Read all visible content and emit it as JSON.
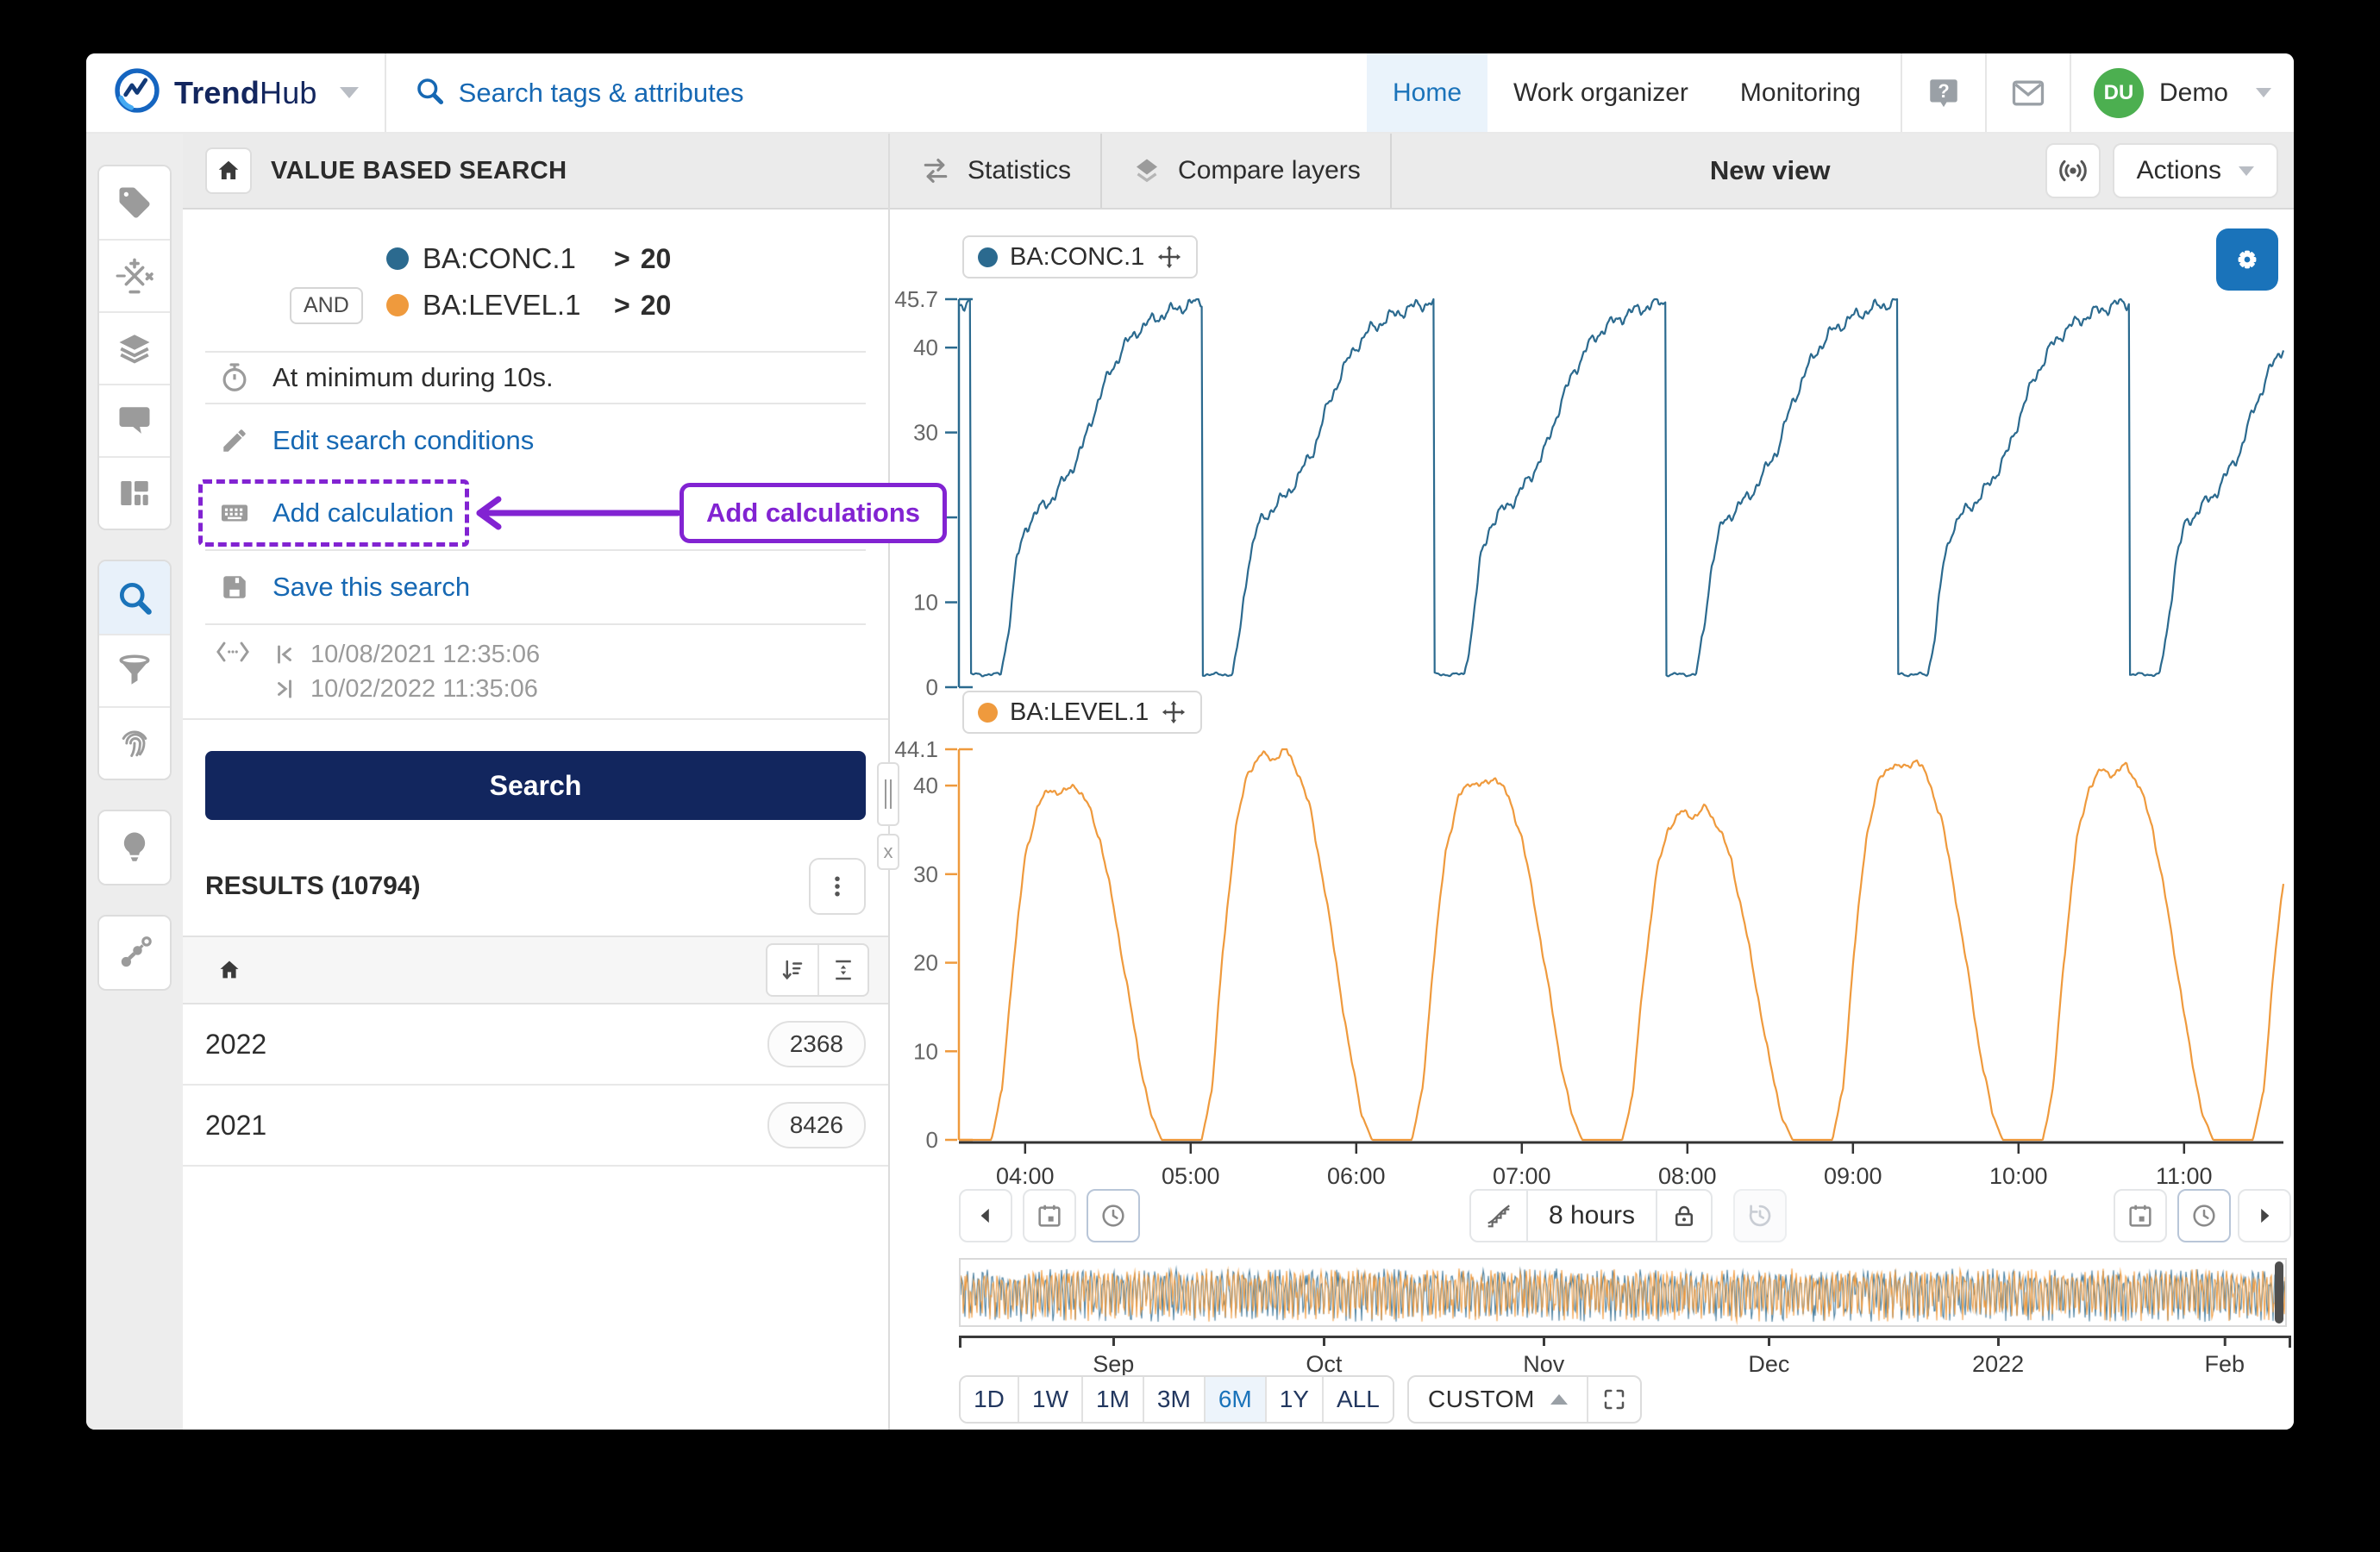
{
  "navbar": {
    "brand": {
      "bold": "Trend",
      "light": "Hub"
    },
    "search_placeholder": "Search tags & attributes",
    "items": [
      {
        "label": "Home",
        "active": true
      },
      {
        "label": "Work organizer",
        "active": false
      },
      {
        "label": "Monitoring",
        "active": false
      }
    ],
    "user": {
      "initials": "DU",
      "name": "Demo"
    }
  },
  "sidebar": {
    "groups": [
      {
        "items": [
          "tag",
          "calculations",
          "layers",
          "comments",
          "dashboard"
        ]
      },
      {
        "items": [
          "search",
          "filter",
          "fingerprint"
        ]
      },
      {
        "items": [
          "lightbulb"
        ]
      },
      {
        "items": [
          "node-graph"
        ]
      }
    ],
    "active_item": "search"
  },
  "search_panel": {
    "title": "VALUE BASED SEARCH",
    "conditions": [
      {
        "join": "",
        "tag": "BA:CONC.1",
        "operator": ">",
        "value": "20",
        "color": "#2b6a8f"
      },
      {
        "join": "AND",
        "tag": "BA:LEVEL.1",
        "operator": ">",
        "value": "20",
        "color": "#ef9a3d"
      }
    ],
    "duration": "At minimum during 10s.",
    "edit_link": "Edit search conditions",
    "add_calculation_link": "Add calculation",
    "save_link": "Save this search",
    "annotation_label": "Add calculations",
    "annotation_color": "#8223d2",
    "period": {
      "from": "10/08/2021 12:35:06",
      "to": "10/02/2022 11:35:06"
    },
    "search_button": "Search",
    "results": {
      "heading": "RESULTS (10794)",
      "rows": [
        {
          "year": "2022",
          "count": "2368"
        },
        {
          "year": "2021",
          "count": "8426"
        }
      ]
    }
  },
  "view_header": {
    "tabs": [
      {
        "label": "Statistics",
        "icon": "swap-arrows"
      },
      {
        "label": "Compare layers",
        "icon": "layers"
      }
    ],
    "title": "New view",
    "actions_button": "Actions"
  },
  "chart_data": [
    {
      "type": "line",
      "name": "BA:CONC.1",
      "color": "#2b6a8f",
      "ylim": [
        0,
        45.7
      ],
      "yticks": [
        {
          "v": 0,
          "label": "0"
        },
        {
          "v": 10,
          "label": "10"
        },
        {
          "v": 20,
          "label": "20"
        },
        {
          "v": 30,
          "label": "30"
        },
        {
          "v": 40,
          "label": "40"
        },
        {
          "v": 45.7,
          "label": "45.7"
        }
      ],
      "x_hours": [
        3.6,
        11.6
      ],
      "waveform": {
        "period": 1.4,
        "phase": 3.67,
        "noise": 1.0,
        "seed": 3,
        "peak_mult": [
          1
        ],
        "template": [
          [
            0,
            1.5
          ],
          [
            0.13,
            1.5
          ],
          [
            0.16,
            6
          ],
          [
            0.2,
            15
          ],
          [
            0.24,
            19
          ],
          [
            0.3,
            21
          ],
          [
            0.36,
            22.5
          ],
          [
            0.42,
            25
          ],
          [
            0.48,
            28
          ],
          [
            0.54,
            33
          ],
          [
            0.6,
            37
          ],
          [
            0.66,
            40
          ],
          [
            0.72,
            42
          ],
          [
            0.8,
            43.5
          ],
          [
            0.88,
            44.5
          ],
          [
            0.96,
            45.2
          ],
          [
            1,
            45.4
          ]
        ]
      }
    },
    {
      "type": "line",
      "name": "BA:LEVEL.1",
      "color": "#ef9a3d",
      "ylim": [
        0,
        44.1
      ],
      "yticks": [
        {
          "v": 0,
          "label": "0"
        },
        {
          "v": 10,
          "label": "10"
        },
        {
          "v": 20,
          "label": "20"
        },
        {
          "v": 30,
          "label": "30"
        },
        {
          "v": 40,
          "label": "40"
        },
        {
          "v": 44.1,
          "label": "44.1"
        }
      ],
      "x_hours": [
        3.6,
        11.6
      ],
      "xticks": [
        {
          "v": 4,
          "label": "04:00"
        },
        {
          "v": 5,
          "label": "05:00"
        },
        {
          "v": 6,
          "label": "06:00"
        },
        {
          "v": 7,
          "label": "07:00"
        },
        {
          "v": 8,
          "label": "08:00"
        },
        {
          "v": 9,
          "label": "09:00"
        },
        {
          "v": 10,
          "label": "10:00"
        },
        {
          "v": 11,
          "label": "11:00"
        }
      ],
      "waveform": {
        "period": 1.27,
        "phase": 3.72,
        "noise": 0.55,
        "seed": 8,
        "peak_mult": [
          0.91,
          1.0,
          0.93,
          0.85,
          0.975,
          0.96,
          0.93
        ],
        "template": [
          [
            0,
            0
          ],
          [
            0.06,
            0
          ],
          [
            0.11,
            6
          ],
          [
            0.16,
            21
          ],
          [
            0.22,
            35
          ],
          [
            0.28,
            41.5
          ],
          [
            0.34,
            43.5
          ],
          [
            0.4,
            43
          ],
          [
            0.46,
            44.1
          ],
          [
            0.52,
            41.5
          ],
          [
            0.58,
            37
          ],
          [
            0.64,
            29
          ],
          [
            0.7,
            20
          ],
          [
            0.76,
            10.5
          ],
          [
            0.82,
            3
          ],
          [
            0.87,
            0
          ],
          [
            1,
            0
          ]
        ]
      }
    }
  ],
  "timebar": {
    "window_label": "8 hours",
    "overview_months": [
      {
        "label": "Sep",
        "pos_pct": 11.6
      },
      {
        "label": "Oct",
        "pos_pct": 27.4
      },
      {
        "label": "Nov",
        "pos_pct": 43.9
      },
      {
        "label": "Dec",
        "pos_pct": 60.8
      },
      {
        "label": "2022",
        "pos_pct": 78.0
      },
      {
        "label": "Feb",
        "pos_pct": 95.0
      }
    ],
    "presets": [
      {
        "label": "1D",
        "active": false
      },
      {
        "label": "1W",
        "active": false
      },
      {
        "label": "1M",
        "active": false
      },
      {
        "label": "3M",
        "active": false
      },
      {
        "label": "6M",
        "active": true
      },
      {
        "label": "1Y",
        "active": false
      },
      {
        "label": "ALL",
        "active": false
      }
    ],
    "custom_label": "CUSTOM"
  },
  "icons": {
    "brand-logo": "circle with trend zigzag",
    "search": "magnifier",
    "help": "question bubble",
    "mail": "envelope",
    "tag": "price tag",
    "calculations": "math operators",
    "layers": "stacked layers",
    "comments": "speech bubble",
    "dashboard": "grid layout",
    "filter": "funnel",
    "fingerprint": "fingerprint",
    "lightbulb": "idea bulb",
    "node-graph": "connected nodes",
    "home": "house",
    "stopwatch": "timer",
    "pencil": "edit",
    "keyboard": "calculation pad",
    "save": "floppy disk",
    "time-range": "angle brackets with dots",
    "kebab": "vertical three dots",
    "sort": "sort descending",
    "collapse": "collapse rows",
    "move": "four-way arrows",
    "gear": "settings",
    "swap-arrows": "transfer arrows",
    "broadcast": "live signal",
    "calendar": "calendar",
    "clock": "clock",
    "lock": "padlock",
    "step-curve": "interpolation style",
    "history": "restore clock",
    "fit": "fit to frame corners",
    "chevron-left": "previous",
    "chevron-right": "next"
  }
}
